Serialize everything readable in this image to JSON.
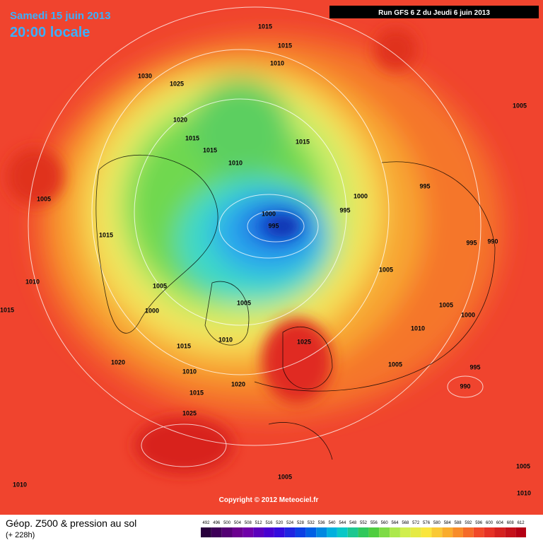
{
  "header": {
    "date": "Samedi 15 juin 2013",
    "time": "20:00 locale",
    "run": "Run GFS 6 Z du Jeudi 6 juin 2013"
  },
  "copyright": "Copyright © 2012 Meteociel.fr",
  "footer": {
    "title": "Géop. Z500 & pression au sol",
    "subtitle": "(+ 228h)"
  },
  "colorbar": {
    "labels": [
      492,
      496,
      500,
      504,
      508,
      512,
      516,
      520,
      524,
      528,
      532,
      536,
      540,
      544,
      548,
      552,
      556,
      560,
      564,
      568,
      572,
      576,
      580,
      584,
      588,
      592,
      596,
      600,
      604,
      608,
      612
    ]
  },
  "isobars": [
    1015,
    1015,
    1010,
    1030,
    1025,
    1020,
    1015,
    1015,
    1010,
    1015,
    1005,
    995,
    1000,
    995,
    1005,
    1000,
    995,
    1015,
    995,
    990,
    1005,
    1010,
    1005,
    1005,
    1000,
    1015,
    1005,
    1000,
    1010,
    1010,
    1025,
    1015,
    1020,
    1005,
    995,
    1010,
    1020,
    990,
    1015,
    1025,
    1005,
    1010,
    1005,
    1010
  ]
}
